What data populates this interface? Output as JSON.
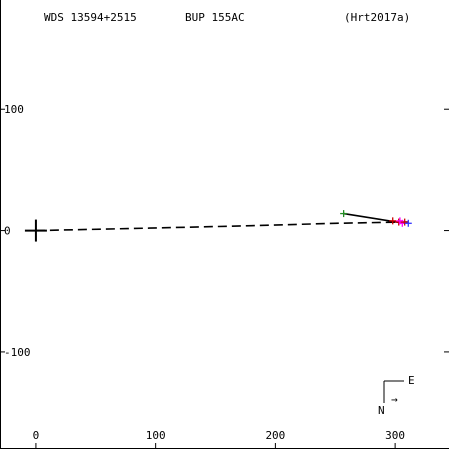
{
  "header": {
    "wds_id": "WDS 13594+2515",
    "discoverer": "BUP 155AC",
    "reference": "(Hrt2017a)"
  },
  "chart_data": {
    "type": "scatter",
    "xlim": [
      -30,
      345
    ],
    "ylim": [
      -180,
      190
    ],
    "x_ticks": [
      {
        "value": 0,
        "label": "0"
      },
      {
        "value": 100,
        "label": "100"
      },
      {
        "value": 200,
        "label": "200"
      },
      {
        "value": 300,
        "label": "300"
      }
    ],
    "y_ticks": [
      {
        "value": 100,
        "label": "100"
      },
      {
        "value": 0,
        "label": "0"
      },
      {
        "value": -100,
        "label": "-100"
      }
    ],
    "primary": {
      "x": 0,
      "y": 0,
      "marker": "plus"
    },
    "orbit_path": {
      "style": "dashed",
      "color": "#000000",
      "points": [
        [
          0,
          0
        ],
        [
          95,
          2
        ],
        [
          180,
          4
        ],
        [
          250,
          6
        ],
        [
          305,
          7
        ],
        [
          312,
          7
        ]
      ]
    },
    "connector_line": {
      "color": "#000000",
      "points": [
        [
          257,
          14
        ],
        [
          308,
          6
        ]
      ]
    },
    "observations": [
      {
        "x": 257,
        "y": 14,
        "marker": "plus",
        "color": "#228b22"
      },
      {
        "x": 298,
        "y": 8,
        "marker": "plus",
        "color": "#cc0000"
      },
      {
        "x": 303,
        "y": 7,
        "marker": "plus",
        "color": "#cc0000"
      },
      {
        "x": 306,
        "y": 6,
        "marker": "plus",
        "color": "#ff00ff"
      },
      {
        "x": 308,
        "y": 7,
        "marker": "plus",
        "color": "#cc0000"
      },
      {
        "x": 311,
        "y": 6,
        "marker": "plus",
        "color": "#3333ff"
      },
      {
        "x": 304,
        "y": 8,
        "marker": "plus",
        "color": "#ff00ff"
      }
    ],
    "compass": {
      "east_label": "E",
      "north_label": "N",
      "arrow_glyph": "→"
    }
  }
}
